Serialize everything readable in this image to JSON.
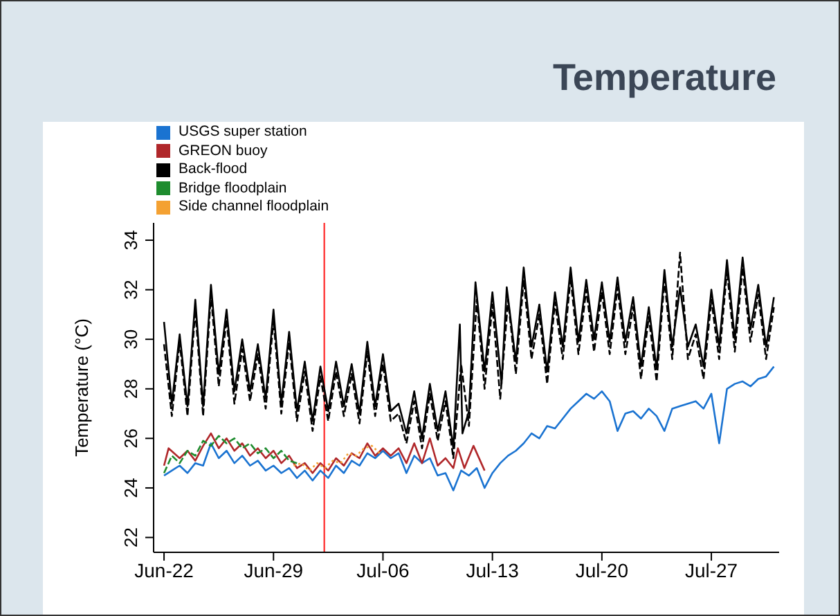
{
  "chart_data": {
    "type": "line",
    "title": "Temperature",
    "ylabel": "Temperature (°C)",
    "legend": "top left",
    "xlim": [
      "--06-21T08:00",
      "--07-31T08:00"
    ],
    "xticks": [
      {
        "value": "--06-22",
        "label": "Jun-22"
      },
      {
        "value": "--06-29",
        "label": "Jun-29"
      },
      {
        "value": "--07-06",
        "label": "Jul-06"
      },
      {
        "value": "--07-13",
        "label": "Jul-13"
      },
      {
        "value": "--07-20",
        "label": "Jul-20"
      },
      {
        "value": "--07-27",
        "label": "Jul-27"
      }
    ],
    "ylim": [
      21.4,
      34.7
    ],
    "yticks": [
      22,
      24,
      26,
      28,
      30,
      32,
      34
    ],
    "ref_lines": [
      {
        "axis": "x",
        "value": "--07-02T06:00",
        "color": "#ff3b3b"
      }
    ],
    "x": [
      "--06-22T00:00",
      "--06-22T12:00",
      "--06-23T00:00",
      "--06-23T12:00",
      "--06-24T00:00",
      "--06-24T12:00",
      "--06-25T00:00",
      "--06-25T12:00",
      "--06-26T00:00",
      "--06-26T12:00",
      "--06-27T00:00",
      "--06-27T12:00",
      "--06-28T00:00",
      "--06-28T12:00",
      "--06-29T00:00",
      "--06-29T12:00",
      "--06-30T00:00",
      "--06-30T12:00",
      "--07-01T00:00",
      "--07-01T12:00",
      "--07-02T00:00",
      "--07-02T12:00",
      "--07-03T00:00",
      "--07-03T12:00",
      "--07-04T00:00",
      "--07-04T12:00",
      "--07-05T00:00",
      "--07-05T12:00",
      "--07-06T00:00",
      "--07-06T12:00",
      "--07-07T00:00",
      "--07-07T12:00",
      "--07-08T00:00",
      "--07-08T12:00",
      "--07-09T00:00",
      "--07-09T12:00",
      "--07-10T00:00",
      "--07-10T12:00",
      "--07-11T00:00",
      "--07-11T12:00",
      "--07-12T00:00",
      "--07-12T12:00",
      "--07-13T00:00",
      "--07-13T12:00",
      "--07-14T00:00",
      "--07-14T12:00",
      "--07-15T00:00",
      "--07-15T12:00",
      "--07-16T00:00",
      "--07-16T12:00",
      "--07-17T00:00",
      "--07-17T12:00",
      "--07-18T00:00",
      "--07-18T12:00",
      "--07-19T00:00",
      "--07-19T12:00",
      "--07-20T00:00",
      "--07-20T12:00",
      "--07-21T00:00",
      "--07-21T12:00",
      "--07-22T00:00",
      "--07-22T12:00",
      "--07-23T00:00",
      "--07-23T12:00",
      "--07-24T00:00",
      "--07-24T12:00",
      "--07-25T00:00",
      "--07-25T12:00",
      "--07-26T00:00",
      "--07-26T12:00",
      "--07-27T00:00",
      "--07-27T12:00",
      "--07-28T00:00",
      "--07-28T12:00",
      "--07-29T00:00",
      "--07-29T12:00",
      "--07-30T00:00",
      "--07-30T12:00",
      "--07-31T00:00"
    ],
    "series": [
      {
        "name": "USGS super station",
        "color": "#1a73d1",
        "values": [
          24.5,
          24.7,
          24.9,
          24.6,
          25.0,
          24.9,
          25.8,
          25.2,
          25.5,
          25.0,
          25.3,
          24.9,
          25.1,
          24.7,
          24.9,
          24.6,
          24.8,
          24.4,
          24.7,
          24.3,
          24.7,
          24.4,
          24.9,
          24.6,
          25.1,
          24.9,
          25.4,
          25.2,
          25.5,
          25.2,
          25.4,
          24.6,
          25.3,
          25.0,
          25.2,
          24.5,
          24.6,
          23.9,
          24.7,
          24.5,
          24.8,
          24.0,
          24.6,
          25.0,
          25.3,
          25.5,
          25.8,
          26.2,
          26.0,
          26.5,
          26.4,
          26.8,
          27.2,
          27.5,
          27.8,
          27.6,
          27.9,
          27.5,
          26.3,
          27.0,
          27.1,
          26.8,
          27.2,
          26.9,
          26.3,
          27.2,
          27.3,
          27.4,
          27.5,
          27.2,
          27.8,
          25.8,
          28.0,
          28.2,
          28.3,
          28.1,
          28.4,
          28.5,
          28.9
        ]
      },
      {
        "name": "GREON buoy",
        "color": "#b0272a",
        "x": [
          "--06-22T00:00",
          "--06-22T07:00",
          "--06-23T00:00",
          "--06-23T12:00",
          "--06-24T00:00",
          "--06-24T12:00",
          "--06-25T00:00",
          "--06-25T12:00",
          "--06-26T00:00",
          "--06-26T12:00",
          "--06-27T00:00",
          "--06-27T12:00",
          "--06-28T00:00",
          "--06-28T12:00",
          "--06-29T00:00",
          "--06-29T12:00",
          "--06-30T00:00",
          "--06-30T12:00",
          "--07-01T00:00",
          "--07-01T12:00",
          "--07-02T00:00",
          "--07-02T12:00",
          "--07-03T00:00",
          "--07-03T12:00",
          "--07-04T00:00",
          "--07-04T12:00",
          "--07-05T00:00",
          "--07-05T12:00",
          "--07-06T00:00",
          "--07-06T12:00",
          "--07-07T00:00",
          "--07-07T12:00",
          "--07-08T00:00",
          "--07-08T12:00",
          "--07-09T00:00",
          "--07-09T12:00",
          "--07-10T00:00",
          "--07-10T12:00",
          "--07-10T19:00",
          "--07-11T05:00",
          "--07-11T19:00",
          "--07-12T12:00"
        ],
        "values": [
          24.9,
          25.6,
          25.2,
          25.5,
          25.1,
          25.7,
          26.2,
          25.6,
          26.0,
          25.5,
          25.8,
          25.3,
          25.6,
          25.2,
          25.5,
          25.0,
          25.3,
          24.8,
          25.0,
          24.6,
          25.0,
          24.7,
          25.2,
          24.9,
          25.4,
          25.2,
          25.8,
          25.3,
          25.6,
          25.3,
          25.6,
          25.0,
          25.8,
          25.0,
          26.0,
          24.9,
          25.2,
          24.8,
          25.6,
          24.8,
          25.7,
          24.7
        ]
      },
      {
        "name": "Back-flood",
        "color": "#000000",
        "x": [
          "--06-22T00:00",
          "--06-22T12:00",
          "--06-23T00:00",
          "--06-23T12:00",
          "--06-24T00:00",
          "--06-24T12:00",
          "--06-25T00:00",
          "--06-25T12:00",
          "--06-26T00:00",
          "--06-26T12:00",
          "--06-27T00:00",
          "--06-27T12:00",
          "--06-28T00:00",
          "--06-28T12:00",
          "--06-29T00:00",
          "--06-29T12:00",
          "--06-30T00:00",
          "--06-30T12:00",
          "--07-01T00:00",
          "--07-01T12:00",
          "--07-02T00:00",
          "--07-02T12:00",
          "--07-03T00:00",
          "--07-03T12:00",
          "--07-04T00:00",
          "--07-04T12:00",
          "--07-05T00:00",
          "--07-05T12:00",
          "--07-06T00:00",
          "--07-06T12:00",
          "--07-07T00:00",
          "--07-07T12:00",
          "--07-08T00:00",
          "--07-08T12:00",
          "--07-09T00:00",
          "--07-09T12:00",
          "--07-10T00:00",
          "--07-10T12:00",
          "--07-10T22:00",
          "--07-11T02:00",
          "--07-11T12:00",
          "--07-11T22:00",
          "--07-12T12:00",
          "--07-13T00:00",
          "--07-13T14:00",
          "--07-13T22:00",
          "--07-14T12:00",
          "--07-15T00:00",
          "--07-15T12:00",
          "--07-16T00:00",
          "--07-16T12:00",
          "--07-17T00:00",
          "--07-17T12:00",
          "--07-18T00:00",
          "--07-18T12:00",
          "--07-19T00:00",
          "--07-19T12:00",
          "--07-20T00:00",
          "--07-20T12:00",
          "--07-21T00:00",
          "--07-21T12:00",
          "--07-22T00:00",
          "--07-22T12:00",
          "--07-23T00:00",
          "--07-23T12:00",
          "--07-24T00:00",
          "--07-24T12:00",
          "--07-25T00:00",
          "--07-25T12:00",
          "--07-26T00:00",
          "--07-26T12:00",
          "--07-27T00:00",
          "--07-27T12:00",
          "--07-28T00:00",
          "--07-28T12:00",
          "--07-29T00:00",
          "--07-29T12:00",
          "--07-30T00:00",
          "--07-30T12:00",
          "--07-31T00:00"
        ],
        "values": [
          30.7,
          27.4,
          30.2,
          27.3,
          31.6,
          27.3,
          32.2,
          28.6,
          31.2,
          27.9,
          30.0,
          27.9,
          29.8,
          27.6,
          31.2,
          27.4,
          30.3,
          27.1,
          29.1,
          26.7,
          28.9,
          27.1,
          29.1,
          27.3,
          29.0,
          27.0,
          29.9,
          27.3,
          29.4,
          27.1,
          27.4,
          26.2,
          27.9,
          26.0,
          28.2,
          26.3,
          27.9,
          25.6,
          30.6,
          26.2,
          27.1,
          32.3,
          28.7,
          31.9,
          28.2,
          32.1,
          29.1,
          32.9,
          29.7,
          31.4,
          28.7,
          31.9,
          29.7,
          32.9,
          29.9,
          32.4,
          30.0,
          32.3,
          29.9,
          32.5,
          29.9,
          31.7,
          28.9,
          31.3,
          28.8,
          32.8,
          29.7,
          32.1,
          29.7,
          30.6,
          28.9,
          32.0,
          29.7,
          33.2,
          30.0,
          33.3,
          30.4,
          32.2,
          29.7,
          31.7
        ]
      },
      {
        "color": "#000000",
        "line_style": "dashed",
        "values": [
          29.8,
          26.9,
          29.9,
          26.9,
          31.2,
          26.9,
          31.8,
          28.1,
          30.8,
          27.4,
          29.6,
          27.5,
          29.4,
          27.2,
          30.8,
          27.0,
          29.9,
          26.7,
          28.7,
          26.3,
          28.5,
          26.7,
          28.7,
          26.9,
          28.6,
          26.6,
          29.5,
          26.9,
          29.0,
          26.7,
          27.0,
          25.8,
          27.5,
          25.6,
          27.8,
          25.9,
          27.5,
          25.2,
          29.0,
          26.5,
          31.6,
          28.0,
          31.4,
          27.6,
          31.6,
          28.6,
          32.4,
          29.2,
          31.0,
          28.2,
          31.5,
          29.2,
          32.5,
          29.4,
          32.0,
          29.5,
          31.9,
          29.4,
          32.1,
          29.4,
          31.3,
          28.4,
          30.9,
          28.3,
          32.4,
          29.2,
          33.5,
          29.2,
          30.2,
          28.4,
          31.6,
          29.2,
          32.8,
          29.5,
          32.9,
          29.9,
          31.8,
          29.2,
          31.3
        ]
      },
      {
        "name": "Bridge floodplain",
        "color": "#1e8c2e",
        "line_style": "dashed",
        "x": [
          "--06-22T00:00",
          "--06-22T12:00",
          "--06-23T00:00",
          "--06-23T12:00",
          "--06-24T00:00",
          "--06-24T12:00",
          "--06-25T00:00",
          "--06-25T12:00",
          "--06-26T00:00",
          "--06-26T12:00",
          "--06-27T00:00",
          "--06-27T12:00",
          "--06-28T00:00",
          "--06-28T12:00",
          "--06-29T00:00",
          "--06-29T12:00",
          "--06-30T00:00",
          "--06-30T12:00"
        ],
        "values": [
          24.6,
          25.3,
          25.0,
          25.5,
          25.3,
          25.9,
          25.7,
          26.1,
          25.8,
          26.0,
          25.6,
          25.8,
          25.4,
          25.6,
          25.2,
          25.5,
          25.1,
          25.0
        ]
      },
      {
        "name": "Side channel floodplain",
        "color": "#f4a132",
        "line_style": "dotted",
        "x": [
          "--06-30T07:00",
          "--06-30T19:00",
          "--07-01T07:00",
          "--07-01T19:00",
          "--07-02T07:00",
          "--07-02T19:00",
          "--07-03T07:00",
          "--07-03T19:00",
          "--07-04T07:00",
          "--07-04T19:00",
          "--07-05T07:00",
          "--07-05T19:00"
        ],
        "values": [
          24.9,
          25.0,
          24.7,
          25.0,
          24.8,
          25.1,
          25.0,
          25.4,
          25.3,
          25.6,
          25.7,
          25.4
        ]
      }
    ]
  }
}
